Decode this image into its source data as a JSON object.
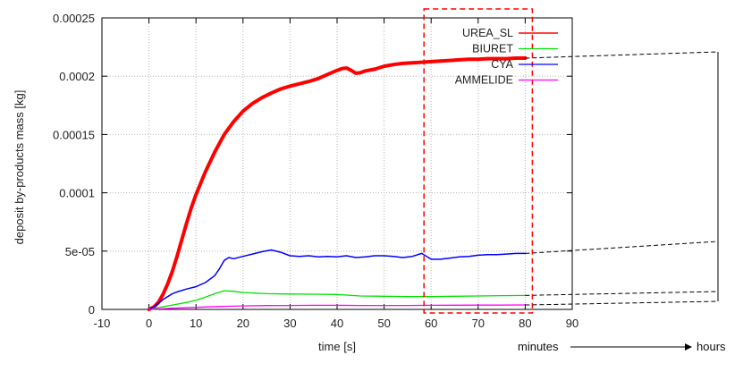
{
  "chart_data": {
    "type": "line",
    "xlabel": "time [s]",
    "ylabel": "deposit by-products mass [kg]",
    "xlim": [
      -10,
      90
    ],
    "ylim": [
      0,
      0.00025
    ],
    "x_ticks": [
      "-10",
      "0",
      "10",
      "20",
      "30",
      "40",
      "50",
      "60",
      "70",
      "80",
      "90"
    ],
    "y_ticks": [
      "0",
      "5e-05",
      "0.0001",
      "0.00015",
      "0.0002",
      "0.00025"
    ],
    "y_tick_values": [
      0,
      5e-05,
      0.0001,
      0.00015,
      0.0002,
      0.00025
    ],
    "grid": true,
    "legend_position": "top-right",
    "series": [
      {
        "name": "UREA_SL",
        "color": "#ff0000",
        "x": [
          0,
          1,
          2,
          3,
          4,
          5,
          6,
          7,
          8,
          9,
          10,
          12,
          14,
          16,
          18,
          20,
          22,
          24,
          26,
          28,
          30,
          32,
          34,
          36,
          38,
          40,
          41,
          42,
          43,
          44,
          45,
          46,
          48,
          50,
          52,
          54,
          56,
          58,
          60,
          62,
          64,
          66,
          68,
          70,
          72,
          74,
          76,
          78,
          80
        ],
        "y": [
          0,
          2e-06,
          6e-06,
          1.3e-05,
          2.2e-05,
          3.3e-05,
          4.6e-05,
          6e-05,
          7.4e-05,
          8.7e-05,
          9.85e-05,
          0.000118,
          0.000135,
          0.00015,
          0.000161,
          0.00017,
          0.0001765,
          0.0001815,
          0.0001855,
          0.000189,
          0.0001915,
          0.0001935,
          0.0001955,
          0.000198,
          0.0002015,
          0.000205,
          0.0002065,
          0.000207,
          0.000205,
          0.0002025,
          0.000203,
          0.0002045,
          0.000206,
          0.0002085,
          0.00021,
          0.000211,
          0.0002115,
          0.000212,
          0.0002125,
          0.000213,
          0.0002135,
          0.000214,
          0.0002145,
          0.0002145,
          0.000215,
          0.000215,
          0.000215,
          0.0002155,
          0.0002155
        ]
      },
      {
        "name": "BIURET",
        "color": "#00e000",
        "x": [
          0,
          2,
          4,
          6,
          8,
          10,
          12,
          14,
          16,
          18,
          20,
          25,
          30,
          35,
          40,
          45,
          50,
          55,
          60,
          65,
          70,
          75,
          80
        ],
        "y": [
          0,
          1.5e-06,
          3e-06,
          4.5e-06,
          6e-06,
          7.8e-06,
          1.05e-05,
          1.35e-05,
          1.6e-05,
          1.55e-05,
          1.45e-05,
          1.35e-05,
          1.32e-05,
          1.3e-05,
          1.28e-05,
          1.15e-05,
          1.13e-05,
          1.1e-05,
          1.1e-05,
          1.13e-05,
          1.15e-05,
          1.18e-05,
          1.2e-05
        ]
      },
      {
        "name": "CYA",
        "color": "#0000ff",
        "x": [
          0,
          1,
          2,
          3,
          4,
          5,
          6,
          8,
          10,
          12,
          14,
          15,
          16,
          17,
          18,
          20,
          22,
          24,
          26,
          28,
          30,
          32,
          34,
          36,
          38,
          40,
          42,
          44,
          46,
          48,
          50,
          52,
          54,
          56,
          58,
          60,
          62,
          64,
          66,
          68,
          70,
          72,
          74,
          76,
          78,
          80
        ],
        "y": [
          0,
          2e-06,
          5e-06,
          8.5e-06,
          1.1e-05,
          1.35e-05,
          1.5e-05,
          1.75e-05,
          1.95e-05,
          2.3e-05,
          2.9e-05,
          3.5e-05,
          4.2e-05,
          4.45e-05,
          4.35e-05,
          4.55e-05,
          4.75e-05,
          4.95e-05,
          5.1e-05,
          4.9e-05,
          4.6e-05,
          4.55e-05,
          4.6e-05,
          4.5e-05,
          4.55e-05,
          4.5e-05,
          4.6e-05,
          4.45e-05,
          4.5e-05,
          4.6e-05,
          4.6e-05,
          4.55e-05,
          4.45e-05,
          4.55e-05,
          4.8e-05,
          4.3e-05,
          4.3e-05,
          4.4e-05,
          4.5e-05,
          4.55e-05,
          4.65e-05,
          4.7e-05,
          4.7e-05,
          4.75e-05,
          4.8e-05,
          4.8e-05
        ]
      },
      {
        "name": "AMMELIDE",
        "color": "#ff00ff",
        "x": [
          0,
          5,
          10,
          15,
          20,
          25,
          30,
          35,
          40,
          45,
          50,
          55,
          60,
          65,
          70,
          75,
          80
        ],
        "y": [
          0,
          1e-06,
          1.8e-06,
          2.5e-06,
          3e-06,
          3.3e-06,
          3.4e-06,
          3.5e-06,
          3.5e-06,
          3.4e-06,
          3.4e-06,
          3.4e-06,
          3.5e-06,
          3.6e-06,
          3.7e-06,
          3.7e-06,
          3.8e-06
        ]
      }
    ],
    "highlight_box": {
      "x_range": [
        60,
        80
      ],
      "style": "dashed",
      "color": "#ff0000"
    },
    "annotation": {
      "left": "minutes",
      "right": "hours"
    }
  }
}
